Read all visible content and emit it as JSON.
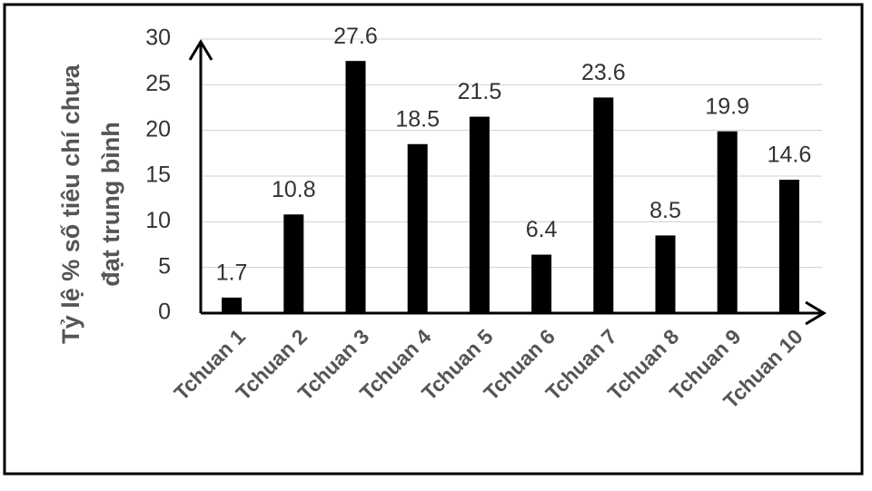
{
  "chart_data": {
    "type": "bar",
    "ylabel": [
      "Tỷ lệ % số tiêu chí chưa",
      "đạt trung bình"
    ],
    "categories": [
      "Tchuan 1",
      "Tchuan 2",
      "Tchuan 3",
      "Tchuan 4",
      "Tchuan 5",
      "Tchuan 6",
      "Tchuan 7",
      "Tchuan 8",
      "Tchuan 9",
      "Tchuan 10"
    ],
    "values": [
      1.7,
      10.8,
      27.6,
      18.5,
      21.5,
      6.4,
      23.6,
      8.5,
      19.9,
      14.6
    ],
    "color": "#000000",
    "ylim": [
      0,
      30
    ],
    "yticks": [
      0,
      5,
      10,
      15,
      20,
      25,
      30
    ],
    "grid": true
  }
}
